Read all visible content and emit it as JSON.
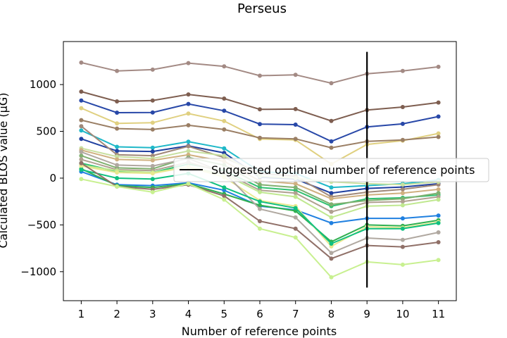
{
  "chart_data": {
    "type": "line",
    "title": "Perseus",
    "xlabel": "Number of reference points",
    "ylabel": "Calculated BLOS value (μG)",
    "x": [
      1,
      2,
      3,
      4,
      5,
      6,
      7,
      8,
      9,
      10,
      11
    ],
    "xlim": [
      0.5,
      11.5
    ],
    "ylim": [
      -1310,
      1460
    ],
    "yticks": [
      -1000,
      -500,
      0,
      500,
      1000
    ],
    "grid": false,
    "legend": {
      "label": "Suggested optimal number of reference points",
      "placement": "center-right"
    },
    "vline": {
      "x": 9,
      "ymin": -1170,
      "ymax": 1350,
      "color": "#000000"
    },
    "series": [
      {
        "color": "#a38a84",
        "values": [
          1235,
          1145,
          1160,
          1230,
          1195,
          1095,
          1105,
          1015,
          1115,
          1145,
          1190
        ]
      },
      {
        "color": "#7e5e50",
        "values": [
          925,
          820,
          830,
          895,
          850,
          735,
          738,
          612,
          728,
          760,
          808
        ]
      },
      {
        "color": "#2848a8",
        "values": [
          830,
          700,
          702,
          793,
          720,
          578,
          572,
          393,
          548,
          580,
          658
        ]
      },
      {
        "color": "#e0d080",
        "values": [
          748,
          585,
          592,
          690,
          610,
          418,
          408,
          150,
          360,
          400,
          478
        ]
      },
      {
        "color": "#9a7e64",
        "values": [
          620,
          530,
          520,
          565,
          520,
          430,
          420,
          325,
          393,
          408,
          440
        ]
      },
      {
        "color": "#1fb8c8",
        "values": [
          510,
          335,
          325,
          390,
          318,
          70,
          50,
          -100,
          -80,
          -60,
          -20
        ]
      },
      {
        "color": "#2040a0",
        "values": [
          420,
          290,
          285,
          345,
          270,
          10,
          -10,
          -160,
          -110,
          -95,
          -60
        ]
      },
      {
        "color": "#a08878",
        "values": [
          555,
          250,
          240,
          340,
          220,
          50,
          20,
          -200,
          -150,
          -120,
          -70
        ]
      },
      {
        "color": "#c8e0a0",
        "values": [
          320,
          230,
          210,
          290,
          240,
          20,
          0,
          -40,
          -60,
          -70,
          -40
        ]
      },
      {
        "color": "#d0b080",
        "values": [
          300,
          200,
          190,
          250,
          180,
          -30,
          -60,
          -220,
          -180,
          -160,
          -120
        ]
      },
      {
        "color": "#30c070",
        "values": [
          160,
          70,
          60,
          150,
          80,
          -100,
          -130,
          -300,
          -220,
          -210,
          -180
        ]
      },
      {
        "color": "#80b070",
        "values": [
          240,
          110,
          100,
          220,
          140,
          -70,
          -100,
          -280,
          -240,
          -220,
          -160
        ]
      },
      {
        "color": "#b0a090",
        "values": [
          200,
          90,
          80,
          170,
          60,
          -130,
          -160,
          -360,
          -260,
          -250,
          -200
        ]
      },
      {
        "color": "#c0e890",
        "values": [
          140,
          80,
          60,
          120,
          40,
          -150,
          -200,
          -420,
          -300,
          -290,
          -230
        ]
      },
      {
        "color": "#2080e0",
        "values": [
          70,
          -70,
          -80,
          -50,
          -130,
          -300,
          -340,
          -480,
          -430,
          -430,
          -400
        ]
      },
      {
        "color": "#30b050",
        "values": [
          100,
          -80,
          -100,
          -60,
          -170,
          -290,
          -350,
          -680,
          -500,
          -510,
          -450
        ]
      },
      {
        "color": "#e8e890",
        "values": [
          130,
          60,
          50,
          120,
          10,
          -240,
          -300,
          -730,
          -520,
          -530,
          -470
        ]
      },
      {
        "color": "#b0a8a0",
        "values": [
          280,
          140,
          130,
          210,
          60,
          -330,
          -420,
          -800,
          -640,
          -660,
          -580
        ]
      },
      {
        "color": "#10c080",
        "values": [
          90,
          0,
          -10,
          50,
          -100,
          -250,
          -320,
          -700,
          -540,
          -540,
          -480
        ]
      },
      {
        "color": "#907068",
        "values": [
          160,
          -90,
          -120,
          -70,
          -190,
          -460,
          -540,
          -860,
          -720,
          -735,
          -685
        ]
      },
      {
        "color": "#c8f090",
        "values": [
          -10,
          -90,
          -150,
          -60,
          -230,
          -540,
          -635,
          -1060,
          -895,
          -925,
          -875
        ]
      }
    ]
  }
}
